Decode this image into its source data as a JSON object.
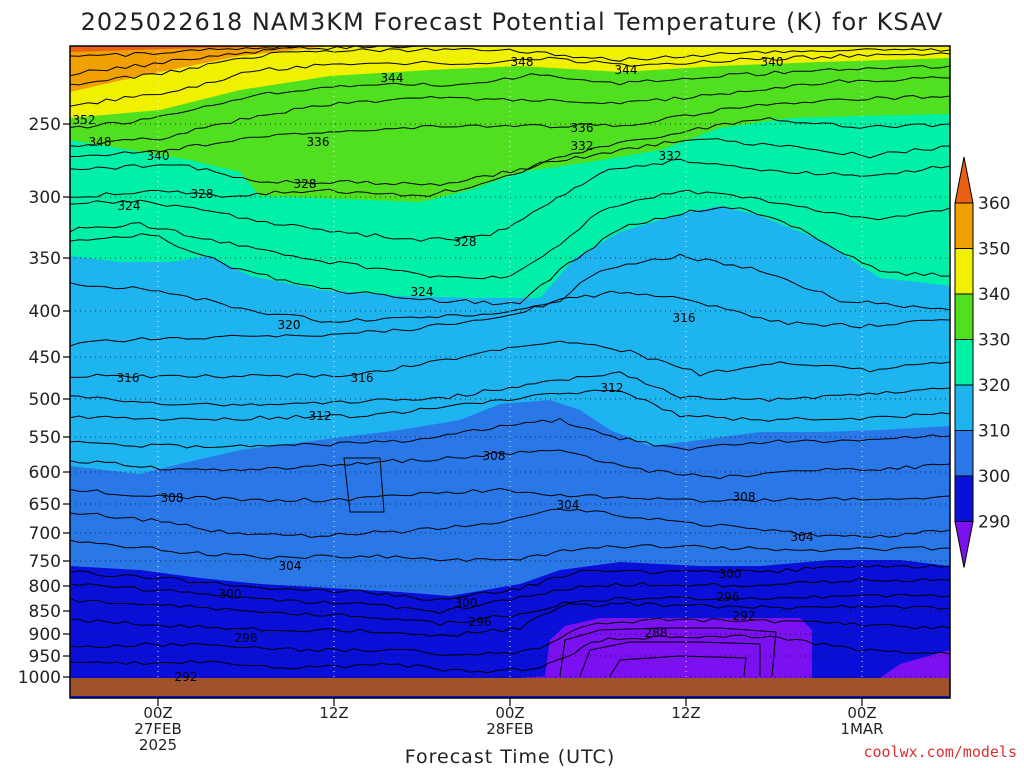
{
  "chart_data": {
    "type": "heatmap",
    "title": "2025022618 NAM3KM Forecast Potential Temperature (K) for KSAV",
    "xlabel": "Forecast Time (UTC)",
    "ylabel": "",
    "y_scale": "log-pressure",
    "y_ticks": [
      "250",
      "300",
      "350",
      "400",
      "450",
      "500",
      "550",
      "600",
      "650",
      "700",
      "750",
      "800",
      "850",
      "900",
      "950",
      "1000"
    ],
    "x_ticks": [
      {
        "l1": "00Z",
        "l2": "27FEB",
        "l3": "2025"
      },
      {
        "l1": "12Z",
        "l2": "",
        "l3": ""
      },
      {
        "l1": "00Z",
        "l2": "28FEB",
        "l3": ""
      },
      {
        "l1": "12Z",
        "l2": "",
        "l3": ""
      },
      {
        "l1": "00Z",
        "l2": "1MAR",
        "l3": ""
      }
    ],
    "colorbar": {
      "levels": [
        "290",
        "300",
        "310",
        "320",
        "330",
        "340",
        "350",
        "360"
      ],
      "colors": [
        "#7b10f0",
        "#0a10d8",
        "#2a78e8",
        "#1eb4f0",
        "#00f0a8",
        "#50e020",
        "#f0f000",
        "#f0a000",
        "#e86010"
      ]
    },
    "contour_labels": [
      "352",
      "348",
      "340",
      "344",
      "348",
      "344",
      "340",
      "336",
      "336",
      "332",
      "328",
      "332",
      "328",
      "324",
      "328",
      "324",
      "320",
      "316",
      "316",
      "316",
      "312",
      "312",
      "308",
      "308",
      "308",
      "304",
      "304",
      "304",
      "300",
      "300",
      "300",
      "296",
      "296",
      "296",
      "292",
      "292",
      "288"
    ],
    "credit": "coolwx.com/models",
    "ground_color": "#a0522d"
  }
}
